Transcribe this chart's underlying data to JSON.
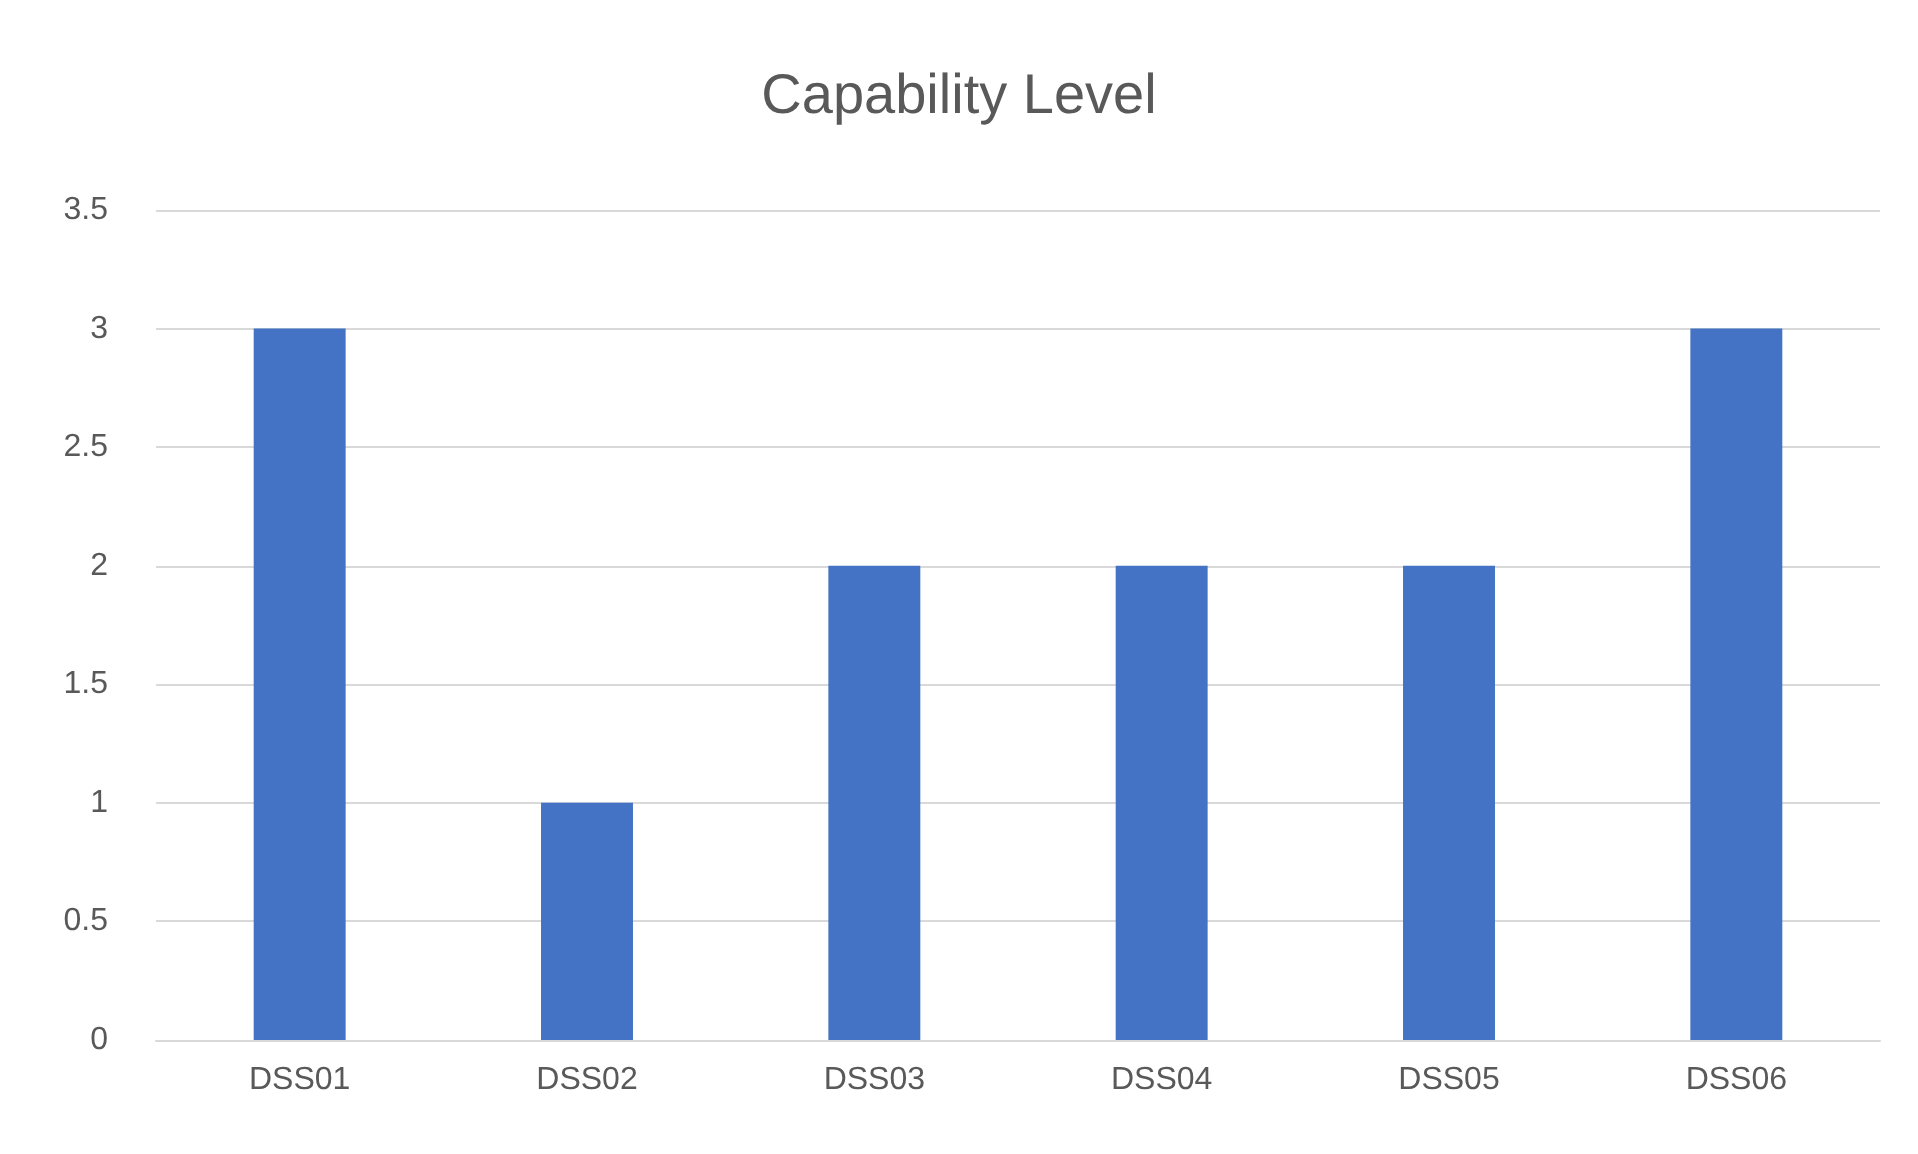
{
  "chart_data": {
    "type": "bar",
    "title": "Capability Level",
    "categories": [
      "DSS01",
      "DSS02",
      "DSS03",
      "DSS04",
      "DSS05",
      "DSS06"
    ],
    "values": [
      3,
      1,
      2,
      2,
      2,
      3
    ],
    "color": "#4472c4",
    "ylim": [
      0,
      3.5
    ],
    "yticks": [
      0,
      0.5,
      1,
      1.5,
      2,
      2.5,
      3,
      3.5
    ],
    "grid": "y"
  }
}
